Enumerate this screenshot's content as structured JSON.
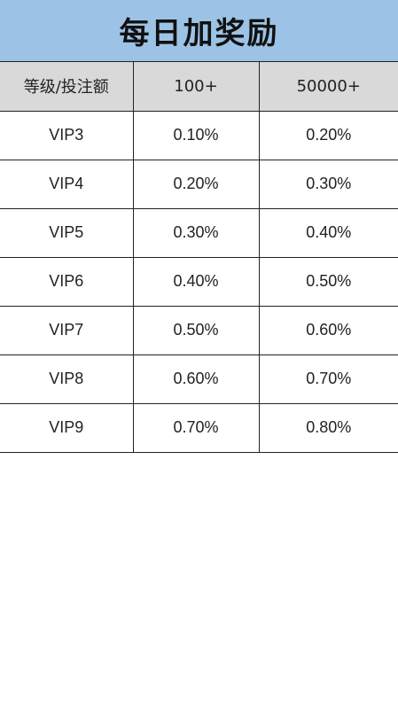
{
  "title": "每日加奖励",
  "table": {
    "headers": [
      "等级/投注额",
      "100+",
      "50000+"
    ],
    "rows": [
      [
        "VIP3",
        "0.10%",
        "0.20%"
      ],
      [
        "VIP4",
        "0.20%",
        "0.30%"
      ],
      [
        "VIP5",
        "0.30%",
        "0.40%"
      ],
      [
        "VIP6",
        "0.40%",
        "0.50%"
      ],
      [
        "VIP7",
        "0.50%",
        "0.60%"
      ],
      [
        "VIP8",
        "0.60%",
        "0.70%"
      ],
      [
        "VIP9",
        "0.70%",
        "0.80%"
      ]
    ]
  },
  "colors": {
    "title_bg": "#9cc3e6",
    "header_bg": "#d9d9d9",
    "grid": "#222222"
  }
}
